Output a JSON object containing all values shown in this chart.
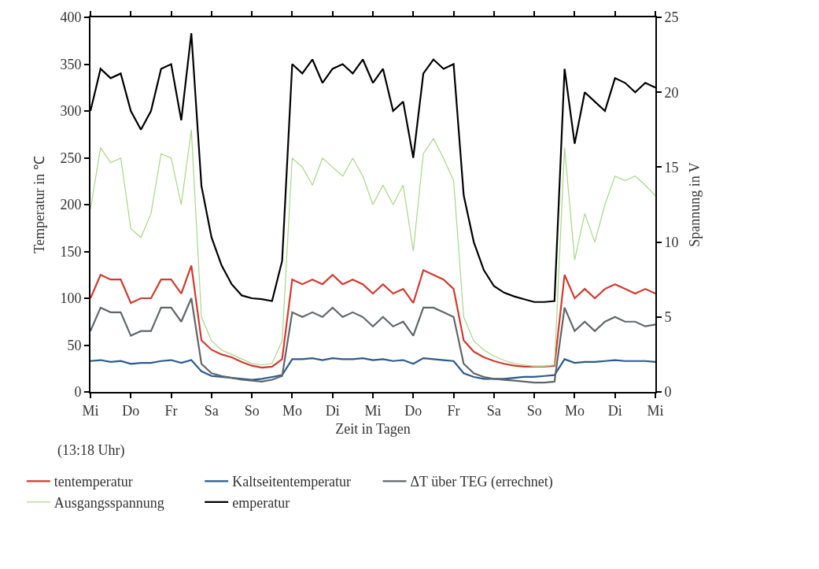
{
  "chart_data": {
    "type": "line",
    "xlabel": "Zeit in Tagen",
    "ylabel": "Temperatur in ℃",
    "y2label": "Spannung in V",
    "categories": [
      "Mi",
      null,
      null,
      null,
      "Do",
      null,
      null,
      null,
      "Fr",
      null,
      null,
      null,
      "Sa",
      null,
      null,
      null,
      "So",
      null,
      null,
      null,
      "Mo",
      null,
      null,
      null,
      "Di",
      null,
      null,
      null,
      "Mi",
      null,
      null,
      null,
      "Do",
      null,
      null,
      null,
      "Fr",
      null,
      null,
      null,
      "Sa",
      null,
      null,
      null,
      "So",
      null,
      null,
      null,
      "Mo",
      null,
      null,
      null,
      "Di",
      null,
      null,
      null,
      "Mi"
    ],
    "series": [
      {
        "name": "tentemperatur",
        "color": "#d03a2f",
        "values": [
          100,
          125,
          120,
          120,
          95,
          100,
          100,
          120,
          120,
          105,
          135,
          55,
          45,
          40,
          37,
          32,
          28,
          26,
          27,
          35,
          120,
          115,
          120,
          115,
          125,
          115,
          120,
          115,
          105,
          115,
          105,
          110,
          95,
          130,
          125,
          120,
          110,
          55,
          43,
          37,
          33,
          30,
          28,
          27,
          27,
          27,
          28,
          125,
          100,
          110,
          100,
          110,
          115,
          110,
          105,
          110,
          105
        ]
      },
      {
        "name": "Kaltseitentemperatur",
        "color": "#2c5a8a",
        "values": [
          33,
          34,
          32,
          33,
          30,
          31,
          31,
          33,
          34,
          31,
          34,
          22,
          17,
          16,
          15,
          14,
          13,
          14,
          16,
          18,
          35,
          35,
          36,
          34,
          36,
          35,
          35,
          36,
          34,
          35,
          33,
          34,
          30,
          36,
          35,
          34,
          33,
          20,
          16,
          14,
          14,
          14,
          15,
          16,
          16,
          17,
          18,
          35,
          31,
          32,
          32,
          33,
          34,
          33,
          33,
          33,
          32
        ]
      },
      {
        "name": "ΔT über TEG (errechnet)",
        "color": "#626669",
        "values": [
          65,
          90,
          85,
          85,
          60,
          65,
          65,
          90,
          90,
          75,
          100,
          30,
          20,
          17,
          15,
          13,
          12,
          11,
          13,
          17,
          85,
          80,
          85,
          80,
          90,
          80,
          85,
          80,
          70,
          80,
          70,
          75,
          60,
          90,
          90,
          85,
          80,
          30,
          20,
          16,
          14,
          13,
          12,
          11,
          10,
          10,
          11,
          90,
          65,
          75,
          65,
          75,
          80,
          75,
          75,
          70,
          72
        ]
      },
      {
        "name": "Ausgangsspannung",
        "color": "#a8d58a",
        "axis": "y2",
        "values": [
          12.2,
          16.3,
          15.3,
          15.6,
          10.9,
          10.3,
          11.9,
          15.9,
          15.6,
          12.5,
          17.5,
          5,
          3.4,
          2.8,
          2.5,
          2.2,
          1.9,
          1.8,
          1.9,
          3.4,
          15.6,
          15,
          13.8,
          15.6,
          15,
          14.4,
          15.6,
          14.4,
          12.5,
          13.8,
          12.5,
          13.8,
          9.4,
          15.9,
          16.9,
          15.6,
          14.1,
          5,
          3.4,
          2.8,
          2.4,
          2.1,
          1.9,
          1.8,
          1.7,
          1.7,
          1.8,
          16.3,
          8.8,
          11.9,
          10,
          12.5,
          14.4,
          14.1,
          14.4,
          13.8,
          13.1
        ]
      },
      {
        "name": "emperatur",
        "color": "#000000",
        "values": [
          300,
          345,
          335,
          340,
          300,
          280,
          300,
          345,
          350,
          290,
          383,
          220,
          165,
          135,
          115,
          103,
          100,
          99,
          97,
          140,
          350,
          340,
          355,
          330,
          345,
          350,
          340,
          355,
          330,
          345,
          300,
          310,
          250,
          340,
          355,
          345,
          350,
          210,
          160,
          130,
          113,
          106,
          102,
          99,
          96,
          96,
          97,
          345,
          265,
          320,
          310,
          300,
          335,
          330,
          320,
          330,
          325
        ]
      }
    ],
    "ylim": [
      0,
      400
    ],
    "yticks": [
      0,
      50,
      100,
      150,
      200,
      250,
      300,
      350,
      400
    ],
    "y2lim": [
      0,
      25
    ],
    "y2ticks": [
      0,
      5,
      10,
      15,
      20,
      25
    ],
    "annotations": [
      "(13:18 Uhr)"
    ],
    "legend": "bottom",
    "marker": "none",
    "line_style": "solid"
  }
}
